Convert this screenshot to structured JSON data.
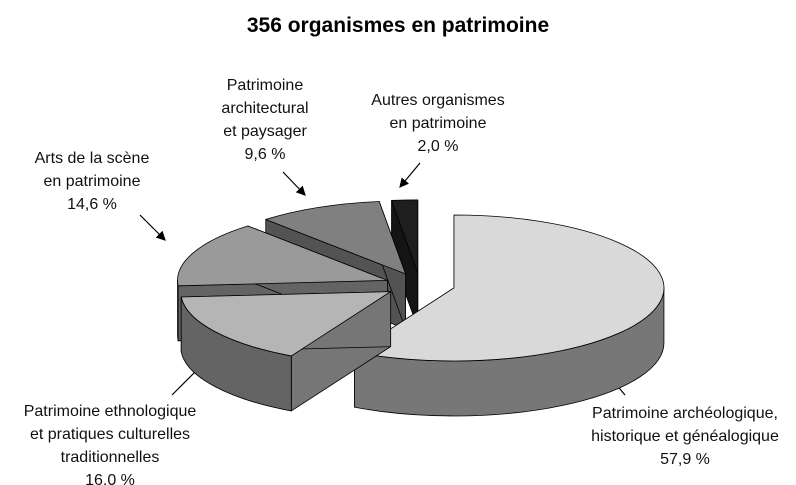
{
  "chart_data": {
    "type": "pie3d",
    "title": "356 organismes en patrimoine",
    "categories": [
      "Patrimoine archéologique,\nhistorique et généalogique",
      "Patrimoine ethnologique\net pratiques culturelles\ntraditionnelles",
      "Arts de la scène\nen patrimoine",
      "Patrimoine\narchitectural\net paysager",
      "Autres organismes\nen patrimoine"
    ],
    "values": [
      57.9,
      16.0,
      14.6,
      9.6,
      2.0
    ],
    "value_labels": [
      "57,9 %",
      "16,0 %",
      "14,6 %",
      "9,6 %",
      "2,0 %"
    ],
    "colors": [
      "#d9d9d9",
      "#b5b5b5",
      "#9a9a9a",
      "#808080",
      "#1e1e1e"
    ]
  }
}
